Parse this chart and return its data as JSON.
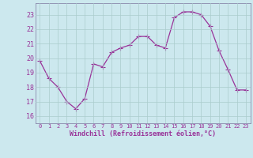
{
  "x": [
    0,
    1,
    2,
    3,
    4,
    5,
    6,
    7,
    8,
    9,
    10,
    11,
    12,
    13,
    14,
    15,
    16,
    17,
    18,
    19,
    20,
    21,
    22,
    23
  ],
  "y": [
    19.8,
    18.6,
    18.0,
    17.0,
    16.5,
    17.2,
    19.6,
    19.4,
    20.4,
    20.7,
    20.9,
    21.5,
    21.5,
    20.9,
    20.7,
    22.8,
    23.2,
    23.2,
    23.0,
    22.2,
    20.5,
    19.2,
    17.8,
    17.8
  ],
  "ylim": [
    15.5,
    23.8
  ],
  "yticks": [
    16,
    17,
    18,
    19,
    20,
    21,
    22,
    23
  ],
  "xlim": [
    -0.5,
    23.5
  ],
  "xticks": [
    0,
    1,
    2,
    3,
    4,
    5,
    6,
    7,
    8,
    9,
    10,
    11,
    12,
    13,
    14,
    15,
    16,
    17,
    18,
    19,
    20,
    21,
    22,
    23
  ],
  "line_color": "#993399",
  "marker_color": "#993399",
  "bg_color": "#cce8ee",
  "grid_color": "#aacccc",
  "xlabel": "Windchill (Refroidissement éolien,°C)",
  "font_color": "#993399",
  "spine_color": "#8888aa",
  "ytick_fontsize": 6.0,
  "xtick_fontsize": 5.0,
  "xlabel_fontsize": 6.0,
  "linewidth": 0.9,
  "markersize": 2.2
}
